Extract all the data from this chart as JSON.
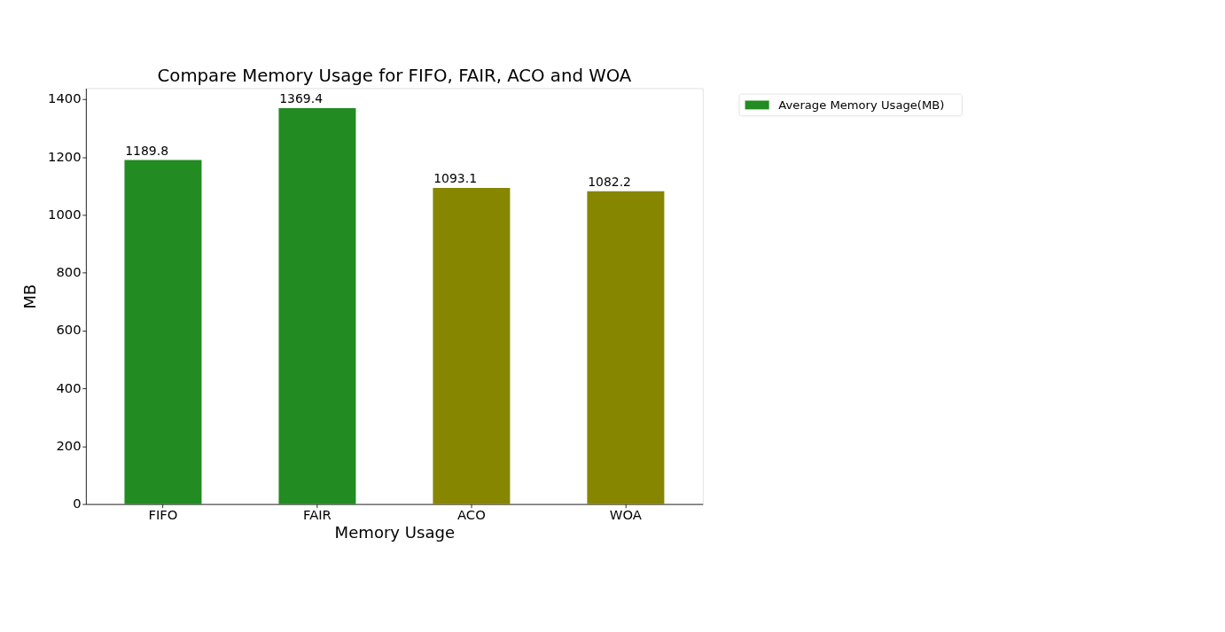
{
  "chart_data": {
    "type": "bar",
    "title": "Compare Memory Usage for FIFO, FAIR, ACO and WOA",
    "xlabel": "Memory Usage",
    "ylabel": "MB",
    "categories": [
      "FIFO",
      "FAIR",
      "ACO",
      "WOA"
    ],
    "series": [
      {
        "name": "Average Memory Usage(MB)",
        "color": "#228b22",
        "colors": [
          "#228b22",
          "#228b22",
          "#868600",
          "#868600"
        ],
        "values": [
          1189.8,
          1369.4,
          1093.1,
          1082.2
        ]
      }
    ],
    "ylim": [
      0,
      1438
    ],
    "yticks": [
      0,
      200,
      400,
      600,
      800,
      1000,
      1200,
      1400
    ],
    "data_labels": true,
    "legend": "top right",
    "grid": false
  }
}
